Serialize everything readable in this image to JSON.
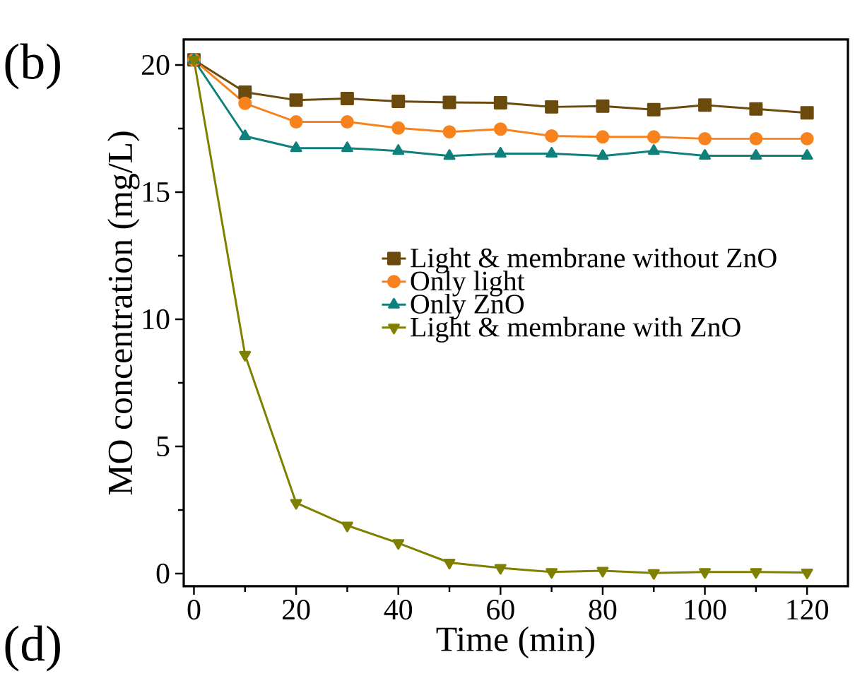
{
  "chart_data": {
    "type": "line",
    "xlabel": "Time (min)",
    "ylabel": "MO concentration (mg/L)",
    "x": [
      0,
      10,
      20,
      30,
      40,
      50,
      60,
      70,
      80,
      90,
      100,
      110,
      120
    ],
    "series": [
      {
        "name": "Light & membrane without ZnO",
        "color": "#6b4a0e",
        "marker": "square",
        "values": [
          20.2,
          18.93,
          18.62,
          18.68,
          18.57,
          18.53,
          18.51,
          18.35,
          18.38,
          18.24,
          18.42,
          18.27,
          18.12
        ]
      },
      {
        "name": "Only light",
        "color": "#f7821e",
        "marker": "circle",
        "values": [
          20.2,
          18.49,
          17.76,
          17.76,
          17.52,
          17.37,
          17.48,
          17.21,
          17.17,
          17.17,
          17.1,
          17.1,
          17.1
        ]
      },
      {
        "name": "Only ZnO",
        "color": "#10807c",
        "marker": "triangle",
        "values": [
          20.2,
          17.2,
          16.73,
          16.73,
          16.62,
          16.42,
          16.51,
          16.51,
          16.42,
          16.62,
          16.43,
          16.43,
          16.43
        ]
      },
      {
        "name": "Light & membrane with ZnO",
        "color": "#808000",
        "marker": "triangle down",
        "values": [
          20.2,
          8.6,
          2.78,
          1.89,
          1.2,
          0.43,
          0.22,
          0.06,
          0.11,
          0.02,
          0.06,
          0.06,
          0.04
        ]
      }
    ],
    "xlim": [
      -2,
      128
    ],
    "ylim": [
      -0.5,
      21
    ],
    "xticks": [
      0,
      20,
      40,
      60,
      80,
      100,
      120
    ],
    "yticks": [
      0,
      5,
      10,
      15,
      20
    ],
    "legend": "right",
    "grid": false,
    "annotations": [
      "(b)",
      "(d)"
    ]
  }
}
